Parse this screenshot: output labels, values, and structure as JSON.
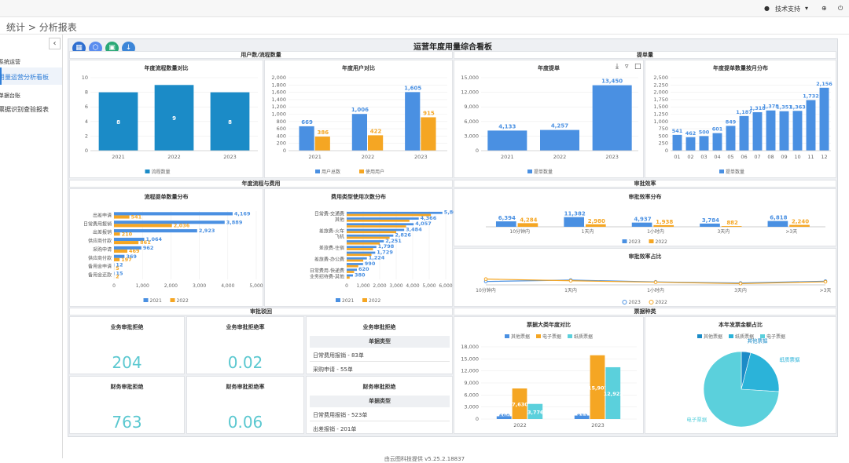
{
  "topbar": {
    "user": "技术支持",
    "user_caret": "▾",
    "globe": "⊕",
    "power": "⏻"
  },
  "breadcrumb": {
    "root": "统计",
    "sep": ">",
    "current": "分析报表"
  },
  "sidebar": {
    "collapse": "‹",
    "sections": [
      {
        "title": "系统运营",
        "items": [
          "用量运营分析看板"
        ]
      },
      {
        "title": "单据台账",
        "items": [
          "票据识别查验报表"
        ]
      }
    ]
  },
  "dashboard": {
    "title": "运营年度用量综合看板"
  },
  "sections": {
    "users_flows": "用户数/流程数量",
    "bills": "提单量",
    "flow_cost": "年度流程与费用",
    "efficiency": "审批效率",
    "rejection": "审批驳回",
    "invoice_types": "票据种类"
  },
  "panels": {
    "p1": "年度流程数量对比",
    "p2": "年度用户对比",
    "p3": "年度提单",
    "p4": "年度提单数量按月分布",
    "p5": "流程提单数量分布",
    "p6": "费用类型使用次数分布",
    "p7": "审批效率分布",
    "p8": "审批效率占比",
    "p9": "票据大类年度对比",
    "p10": "本年发票金额占比"
  },
  "kpis": [
    {
      "title": "业务审批拒绝",
      "value": "204"
    },
    {
      "title": "业务审批拒绝率",
      "value": "0.02"
    },
    {
      "title": "财务审批拒绝",
      "value": "763"
    },
    {
      "title": "财务审批拒绝率",
      "value": "0.06"
    }
  ],
  "tables": [
    {
      "title": "业务审批拒绝",
      "header": "单据类型",
      "rows": [
        "日常费用报销 - 83单",
        "采购申请 - 55单"
      ]
    },
    {
      "title": "财务审批拒绝",
      "header": "单据类型",
      "rows": [
        "日常费用报销 - 523单",
        "出差报销 - 201单"
      ]
    }
  ],
  "footer": "由云图科技提供 v5.25.2.18837",
  "colors": {
    "blue": "#1b8bc7",
    "blue2": "#4a90e2",
    "orange": "#f5a623",
    "teal": "#5bd0dc"
  },
  "chart_data": [
    {
      "id": "p1",
      "type": "bar",
      "categories": [
        "2021",
        "2022",
        "2023"
      ],
      "values": [
        8,
        9,
        8
      ],
      "ylim": [
        0,
        10
      ],
      "yticks": [
        0,
        2,
        4,
        6,
        8,
        10
      ],
      "legend": [
        "流程数量"
      ]
    },
    {
      "id": "p2",
      "type": "bar",
      "categories": [
        "2021",
        "2022",
        "2023"
      ],
      "series": [
        {
          "name": "用户总数",
          "values": [
            669,
            1006,
            1605
          ]
        },
        {
          "name": "使用用户",
          "values": [
            386,
            422,
            915
          ]
        }
      ],
      "ylim": [
        0,
        2000
      ],
      "yticks": [
        0,
        200,
        400,
        600,
        800,
        1000,
        1200,
        1400,
        1600,
        1800,
        2000
      ]
    },
    {
      "id": "p3",
      "type": "bar",
      "categories": [
        "2021",
        "2022",
        "2023"
      ],
      "values": [
        4133,
        4257,
        13450
      ],
      "ylim": [
        0,
        15000
      ],
      "yticks": [
        0,
        3000,
        6000,
        9000,
        12000,
        15000
      ],
      "legend": [
        "提单数量"
      ]
    },
    {
      "id": "p4",
      "type": "bar",
      "categories": [
        "01",
        "02",
        "03",
        "04",
        "05",
        "06",
        "07",
        "08",
        "09",
        "10",
        "11",
        "12"
      ],
      "values": [
        541,
        462,
        500,
        601,
        849,
        1187,
        1318,
        1378,
        1351,
        1363,
        1732,
        2156
      ],
      "ylim": [
        0,
        2500
      ],
      "yticks": [
        0,
        250,
        500,
        750,
        1000,
        1250,
        1500,
        1750,
        2000,
        2250,
        2500
      ],
      "legend": [
        "提单数量"
      ]
    },
    {
      "id": "p5",
      "type": "hbar",
      "categories": [
        "出差申请",
        "日常费用报销",
        "出差报销",
        "供应商付款",
        "采购申请",
        "供应商付款",
        "备用金申请",
        "备用金还款"
      ],
      "series": [
        {
          "name": "2021",
          "values": [
            4169,
            3889,
            2923,
            1064,
            962,
            369,
            12,
            15
          ]
        },
        {
          "name": "2022",
          "values": [
            541,
            2036,
            210,
            861,
            469,
            197,
            5,
            2
          ]
        }
      ],
      "xlim": [
        0,
        5000
      ],
      "xticks": [
        0,
        1000,
        2000,
        3000,
        4000,
        5000
      ]
    },
    {
      "id": "p6",
      "type": "hbar",
      "categories": [
        "日常费-交通费",
        "其他",
        "",
        "差旅费-火车",
        "飞机",
        "",
        "差旅费-住宿",
        "",
        "差旅费-办公费",
        "",
        "日常费用-快递费",
        "业务招待费-其他"
      ],
      "series": [
        {
          "name": "2021",
          "values": [
            5800,
            4366,
            4057,
            3484,
            2826,
            2251,
            1798,
            1729,
            1224,
            990,
            620,
            380
          ]
        },
        {
          "name": "2022",
          "values": [
            5100,
            3800,
            3600,
            3000,
            2600,
            2000,
            1600,
            1500,
            1000,
            700,
            450,
            180
          ]
        }
      ],
      "xlim": [
        0,
        6000
      ],
      "xticks": [
        0,
        1000,
        2000,
        3000,
        4000,
        5000,
        6000
      ]
    },
    {
      "id": "p7",
      "type": "bar",
      "categories": [
        "10分钟内",
        "1天内",
        "1小时内",
        "3天内",
        ">3天"
      ],
      "series": [
        {
          "name": "2023",
          "values": [
            6394,
            11382,
            4937,
            3784,
            6818
          ]
        },
        {
          "name": "2022",
          "values": [
            4284,
            2980,
            1938,
            882,
            2240
          ]
        }
      ],
      "ylim": [
        0,
        12000
      ]
    },
    {
      "id": "p8",
      "type": "line",
      "categories": [
        "10分钟内",
        "1天内",
        "1小时内",
        "3天内",
        ">3天"
      ],
      "series": [
        {
          "name": "2023",
          "values": [
            0.24,
            0.34,
            0.21,
            0.13,
            0.26
          ]
        },
        {
          "name": "2022",
          "values": [
            0.41,
            0.29,
            0.19,
            0.09,
            0.22
          ]
        }
      ]
    },
    {
      "id": "p9",
      "type": "bar",
      "categories": [
        "2022",
        "2023"
      ],
      "series": [
        {
          "name": "其他票据",
          "values": [
            690,
            872
          ]
        },
        {
          "name": "电子票据",
          "values": [
            7630,
            15907
          ]
        },
        {
          "name": "纸质票据",
          "values": [
            3776,
            12922
          ]
        }
      ],
      "ylim": [
        0,
        18000
      ],
      "yticks": [
        0,
        3000,
        6000,
        9000,
        12000,
        15000,
        18000
      ]
    },
    {
      "id": "p10",
      "type": "pie",
      "labels": [
        "其他票据",
        "纸质票据",
        "电子票据"
      ],
      "values": [
        4,
        22,
        74
      ],
      "legend": [
        "其他票据",
        "纸质票据",
        "电子票据"
      ]
    }
  ]
}
